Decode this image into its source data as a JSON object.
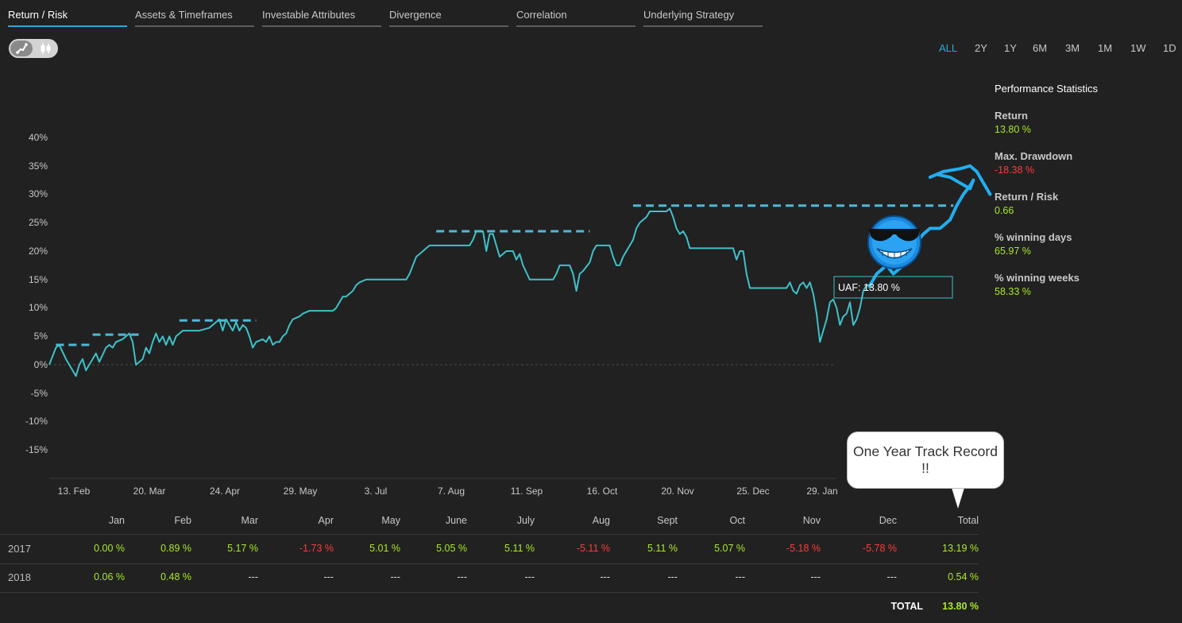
{
  "tabs": [
    "Return / Risk",
    "Assets & Timeframes",
    "Investable Attributes",
    "Divergence",
    "Correlation",
    "Underlying Strategy"
  ],
  "active_tab": "Return / Risk",
  "chart_mode_toggle": {
    "options": [
      "line-chart-icon",
      "candlestick-icon"
    ],
    "selected": "line-chart-icon"
  },
  "time_ranges": [
    "ALL",
    "2Y",
    "1Y",
    "6M",
    "3M",
    "1M",
    "1W",
    "1D"
  ],
  "active_range": "ALL",
  "stats": {
    "title": "Performance Statistics",
    "items": [
      {
        "label": "Return",
        "value": "13.80 %",
        "color": "#a9e82a"
      },
      {
        "label": "Max. Drawdown",
        "value": "-18.38 %",
        "color": "#ff3b3b"
      },
      {
        "label": "Return / Risk",
        "value": "0.66",
        "color": "#a9e82a"
      },
      {
        "label": "% winning days",
        "value": "65.97 %",
        "color": "#a9e82a"
      },
      {
        "label": "% winning weeks",
        "value": "58.33 %",
        "color": "#a9e82a"
      }
    ]
  },
  "chart_data": {
    "type": "line",
    "title": "",
    "xlabel": "",
    "ylabel": "",
    "y_ticks": [
      "40%",
      "35%",
      "30%",
      "25%",
      "20%",
      "15%",
      "10%",
      "5%",
      "0%",
      "-5%",
      "-10%",
      "-15%"
    ],
    "x_ticks": [
      "13. Feb",
      "20. Mar",
      "24. Apr",
      "29. May",
      "3. Jul",
      "7. Aug",
      "11. Sep",
      "16. Oct",
      "20. Nov",
      "25. Dec",
      "29. Jan"
    ],
    "ylim": [
      -20,
      40
    ],
    "line_color": "#3fc1c9",
    "series": [
      {
        "values": [
          [
            0,
            0
          ],
          [
            2,
            3
          ],
          [
            3,
            3.5
          ],
          [
            5,
            1
          ],
          [
            7,
            -1
          ],
          [
            8,
            -2
          ],
          [
            9,
            0
          ],
          [
            10,
            1
          ],
          [
            11,
            -1
          ],
          [
            13,
            1
          ],
          [
            14,
            2
          ],
          [
            15,
            0.5
          ],
          [
            17,
            3
          ],
          [
            18,
            3.5
          ],
          [
            19,
            3
          ],
          [
            20,
            4
          ],
          [
            22,
            4.5
          ],
          [
            24,
            5.5
          ],
          [
            25,
            4
          ],
          [
            26,
            0
          ],
          [
            28,
            1
          ],
          [
            29,
            3
          ],
          [
            30,
            2
          ],
          [
            31,
            4
          ],
          [
            32,
            5.5
          ],
          [
            33,
            4
          ],
          [
            34,
            5
          ],
          [
            35,
            3.5
          ],
          [
            36,
            5
          ],
          [
            37,
            3.5
          ],
          [
            38,
            5
          ],
          [
            40,
            6
          ],
          [
            45,
            6
          ],
          [
            48,
            6.5
          ],
          [
            50,
            7.5
          ],
          [
            51,
            8
          ],
          [
            52,
            6
          ],
          [
            53,
            8
          ],
          [
            54,
            7
          ],
          [
            55,
            6
          ],
          [
            56,
            7.5
          ],
          [
            57,
            6
          ],
          [
            58,
            7
          ],
          [
            59,
            6.5
          ],
          [
            60,
            5
          ],
          [
            61,
            3
          ],
          [
            62,
            4
          ],
          [
            64,
            4.5
          ],
          [
            65,
            4
          ],
          [
            66,
            5
          ],
          [
            67,
            3.5
          ],
          [
            68,
            4
          ],
          [
            69,
            4
          ],
          [
            70,
            5
          ],
          [
            71,
            5.5
          ],
          [
            72,
            7
          ],
          [
            73,
            8
          ],
          [
            75,
            8.5
          ],
          [
            76,
            9
          ],
          [
            78,
            9.5
          ],
          [
            85,
            9.5
          ],
          [
            86,
            10
          ],
          [
            88,
            12
          ],
          [
            89,
            12
          ],
          [
            91,
            13
          ],
          [
            92,
            14
          ],
          [
            93,
            14.5
          ],
          [
            95,
            15
          ],
          [
            107,
            15
          ],
          [
            108,
            16
          ],
          [
            110,
            19
          ],
          [
            111,
            19.5
          ],
          [
            113,
            20.5
          ],
          [
            114,
            21
          ],
          [
            126,
            21
          ],
          [
            127,
            22
          ],
          [
            128,
            23.5
          ],
          [
            130,
            23.5
          ],
          [
            131,
            20
          ],
          [
            132,
            23
          ],
          [
            133,
            23
          ],
          [
            134,
            21
          ],
          [
            135,
            19
          ],
          [
            137,
            20
          ],
          [
            139,
            20
          ],
          [
            140,
            18.5
          ],
          [
            141,
            19.5
          ],
          [
            142,
            17.5
          ],
          [
            144,
            15
          ],
          [
            151,
            15
          ],
          [
            152,
            16
          ],
          [
            153,
            17.5
          ],
          [
            156,
            17.5
          ],
          [
            157,
            16
          ],
          [
            158,
            13
          ],
          [
            159,
            16
          ],
          [
            160,
            16.5
          ],
          [
            162,
            18
          ],
          [
            163,
            20
          ],
          [
            164,
            21
          ],
          [
            168,
            21
          ],
          [
            169,
            19
          ],
          [
            170,
            17.5
          ],
          [
            171,
            17.5
          ],
          [
            172,
            19
          ],
          [
            173,
            20
          ],
          [
            174,
            21
          ],
          [
            175,
            22
          ],
          [
            176,
            24
          ],
          [
            177,
            25
          ],
          [
            178,
            25.5
          ],
          [
            179,
            26
          ],
          [
            180,
            27
          ],
          [
            185,
            27
          ],
          [
            186,
            27.5
          ],
          [
            187,
            26
          ],
          [
            188,
            24
          ],
          [
            189,
            23
          ],
          [
            190,
            23.5
          ],
          [
            191,
            22.5
          ],
          [
            192,
            20.5
          ],
          [
            205,
            20.5
          ],
          [
            206,
            18.5
          ],
          [
            207,
            20
          ],
          [
            208,
            20
          ],
          [
            209,
            16
          ],
          [
            210,
            13.5
          ],
          [
            221,
            13.5
          ],
          [
            222,
            14.5
          ],
          [
            223,
            13
          ],
          [
            224,
            12.5
          ],
          [
            225,
            14
          ],
          [
            226,
            14.5
          ],
          [
            227,
            13.5
          ],
          [
            228,
            14.5
          ],
          [
            229,
            12.5
          ],
          [
            230,
            9
          ],
          [
            231,
            4
          ],
          [
            232,
            6
          ],
          [
            233,
            8
          ],
          [
            234,
            11
          ],
          [
            235,
            11.5
          ],
          [
            236,
            10
          ],
          [
            237,
            7
          ],
          [
            238,
            8.5
          ],
          [
            239,
            9
          ],
          [
            240,
            11
          ],
          [
            241,
            7
          ],
          [
            242,
            8
          ],
          [
            243,
            10
          ],
          [
            244,
            13
          ],
          [
            245,
            14
          ],
          [
            246,
            14
          ]
        ]
      },
      {
        "name": "marker",
        "values": [
          [
            246,
            13.8
          ]
        ]
      }
    ],
    "drawdown_levels": [
      {
        "from": 2,
        "to": 13,
        "value": 3.5
      },
      {
        "from": 13,
        "to": 27,
        "value": 5.3
      },
      {
        "from": 39,
        "to": 62,
        "value": 7.8
      },
      {
        "from": 116,
        "to": 162,
        "value": 23.5
      },
      {
        "from": 175,
        "to": 271,
        "value": 28
      }
    ],
    "annotation": {
      "label": "UAF: 13.80 %"
    },
    "projection": {
      "color": "#22aef0",
      "values": [
        [
          246,
          14
        ],
        [
          248,
          16
        ],
        [
          251,
          17.5
        ],
        [
          253,
          16
        ],
        [
          256,
          17.5
        ],
        [
          258,
          19
        ],
        [
          260,
          21.5
        ],
        [
          262,
          23
        ],
        [
          264,
          24
        ],
        [
          267,
          24
        ],
        [
          269,
          25
        ],
        [
          270,
          25.5
        ],
        [
          272,
          28
        ],
        [
          274,
          30
        ],
        [
          276,
          31.5
        ],
        [
          277,
          32.5
        ],
        [
          276,
          31
        ],
        [
          273,
          32
        ],
        [
          270,
          33
        ],
        [
          266,
          33.5
        ],
        [
          264,
          33
        ],
        [
          268,
          34
        ],
        [
          273,
          34.5
        ],
        [
          276,
          35
        ],
        [
          278,
          34
        ],
        [
          280,
          32
        ],
        [
          282,
          30
        ]
      ]
    },
    "zero_line": true
  },
  "callout": {
    "text": "One Year Track Record !!"
  },
  "monthly_table": {
    "headers": [
      "Jan",
      "Feb",
      "Mar",
      "Apr",
      "May",
      "June",
      "July",
      "Aug",
      "Sept",
      "Oct",
      "Nov",
      "Dec",
      "Total"
    ],
    "rows": [
      {
        "year": "2017",
        "values": [
          "0.00 %",
          "0.89 %",
          "5.17 %",
          "-1.73 %",
          "5.01 %",
          "5.05 %",
          "5.11 %",
          "-5.11 %",
          "5.11 %",
          "5.07 %",
          "-5.18 %",
          "-5.78 %",
          "13.19 %"
        ]
      },
      {
        "year": "2018",
        "values": [
          "0.06 %",
          "0.48 %",
          "---",
          "---",
          "---",
          "---",
          "---",
          "---",
          "---",
          "---",
          "---",
          "---",
          "0.54 %"
        ]
      }
    ],
    "total_label": "TOTAL",
    "total_value": "13.80 %"
  }
}
